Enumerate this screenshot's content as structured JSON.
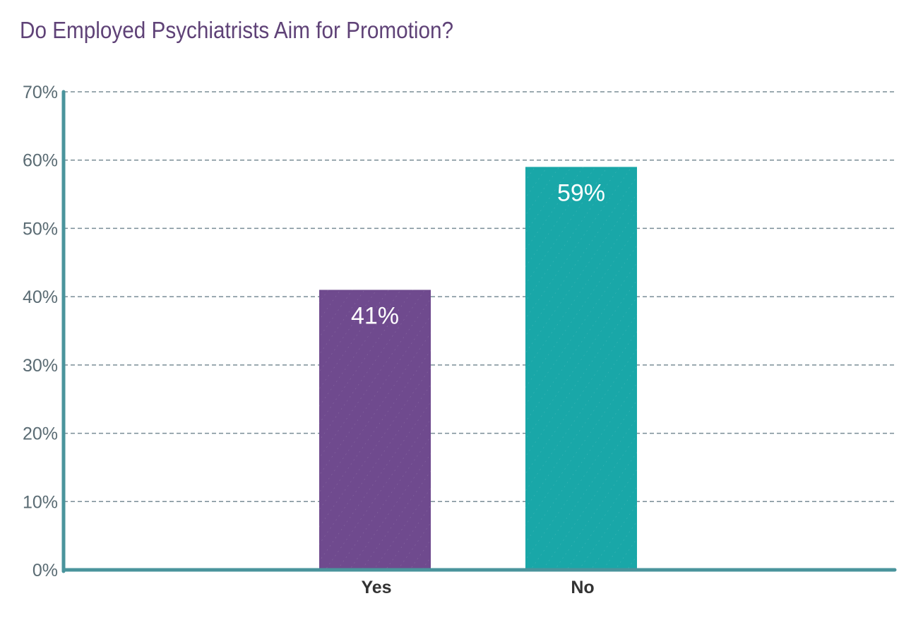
{
  "chart_data": {
    "type": "bar",
    "title": "Do Employed Psychiatrists Aim for Promotion?",
    "categories": [
      "Yes",
      "No"
    ],
    "values": [
      41,
      59
    ],
    "data_labels": [
      "41%",
      "59%"
    ],
    "colors": [
      "#6f4a8e",
      "#19a7a8"
    ],
    "ylim": [
      0,
      70
    ],
    "yticks": [
      0,
      10,
      20,
      30,
      40,
      50,
      60,
      70
    ],
    "ytick_format": "%",
    "grid": "horizontal-dashed",
    "axis_color": "#4a949c",
    "xlabel": "",
    "ylabel": ""
  }
}
